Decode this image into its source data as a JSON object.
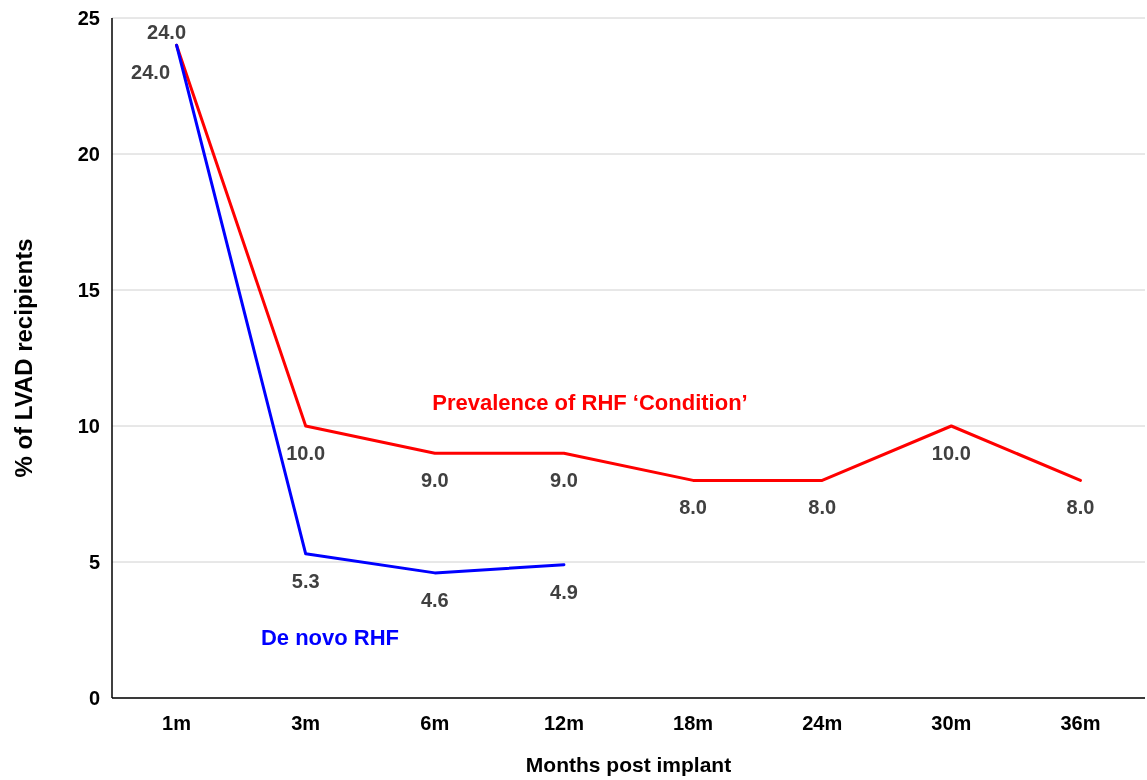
{
  "chart_data": {
    "type": "line",
    "xlabel": "Months post implant",
    "ylabel": "% of LVAD recipients",
    "categories": [
      "1m",
      "3m",
      "6m",
      "12m",
      "18m",
      "24m",
      "30m",
      "36m"
    ],
    "series": [
      {
        "name": "Prevalence of RHF ‘Condition’",
        "color": "#ff0000",
        "values": [
          24.0,
          10.0,
          9.0,
          9.0,
          8.0,
          8.0,
          10.0,
          8.0
        ],
        "value_labels": [
          "24.0",
          "10.0",
          "9.0",
          "9.0",
          "8.0",
          "8.0",
          "10.0",
          "8.0"
        ]
      },
      {
        "name": "De novo RHF",
        "color": "#0000ff",
        "values": [
          24.0,
          5.3,
          4.6,
          4.9,
          null,
          null,
          null,
          null
        ],
        "value_labels": [
          "24.0",
          "5.3",
          "4.6",
          "4.9",
          null,
          null,
          null,
          null
        ]
      }
    ],
    "ylim": [
      0,
      25
    ],
    "yticks": [
      0,
      5,
      10,
      15,
      20,
      25
    ],
    "grid": "y",
    "legend": false,
    "marker": "none",
    "line_style": "solid"
  }
}
